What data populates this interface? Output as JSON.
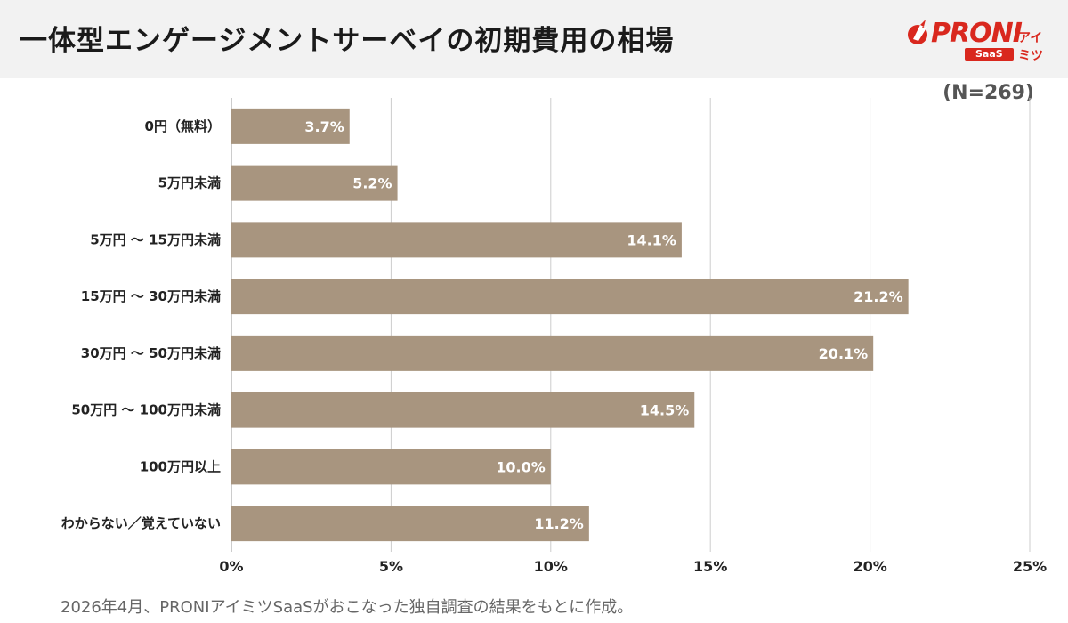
{
  "header": {
    "title": "一体型エンゲージメントサーベイの初期費用の相場"
  },
  "logo": {
    "name": "PRONI",
    "sub": "アイミツ",
    "badge": "SaaS"
  },
  "sample_size": "(N=269)",
  "source_note": "2026年4月、PRONIアイミツSaaSがおこなった独自調査の結果をもとに作成。",
  "colors": {
    "bar": "#a8957f",
    "grid": "#cccccc",
    "brand": "#d9281e"
  },
  "chart_data": {
    "type": "bar",
    "orientation": "horizontal",
    "categories": [
      "0円（無料）",
      "5万円未満",
      "5万円 〜 15万円未満",
      "15万円 〜 30万円未満",
      "30万円 〜 50万円未満",
      "50万円 〜 100万円未満",
      "100万円以上",
      "わからない／覚えていない"
    ],
    "values": [
      3.7,
      5.2,
      14.1,
      21.2,
      20.1,
      14.5,
      10.0,
      11.2
    ],
    "value_labels": [
      "3.7%",
      "5.2%",
      "14.1%",
      "21.2%",
      "20.1%",
      "14.5%",
      "10.0%",
      "11.2%"
    ],
    "xlim": [
      0,
      25
    ],
    "ticks": [
      0,
      5,
      10,
      15,
      20,
      25
    ],
    "tick_labels": [
      "0%",
      "5%",
      "10%",
      "15%",
      "20%",
      "25%"
    ],
    "grid": true
  }
}
